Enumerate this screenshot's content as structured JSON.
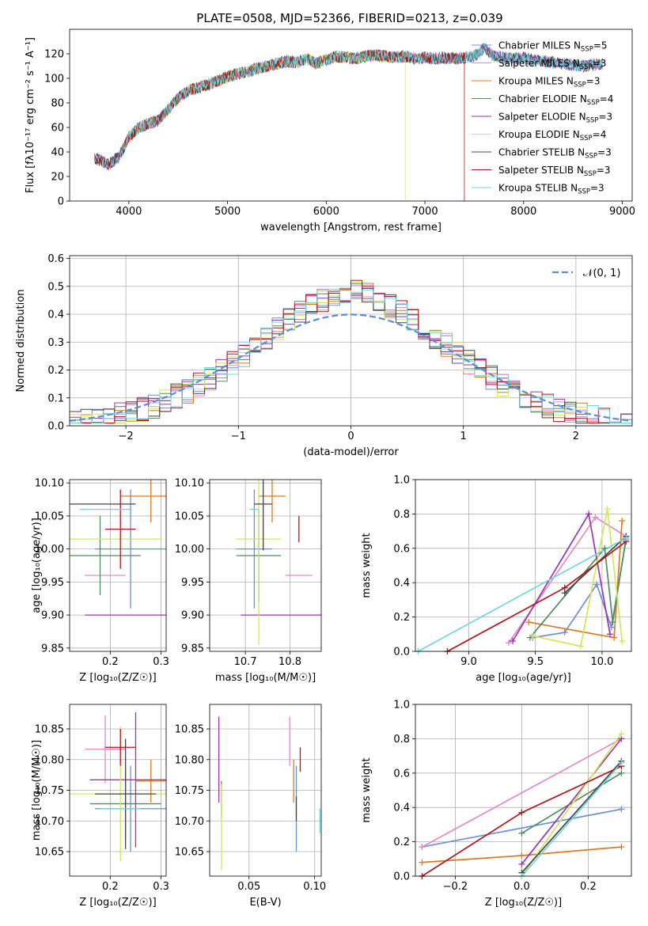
{
  "figure_title": "PLATE=0508, MJD=52366, FIBERID=0213, z=0.039",
  "models": [
    {
      "name": "Chabrier MILES",
      "nssp": "5",
      "color": "#6a8fdc"
    },
    {
      "name": "Salpeter MILES",
      "nssp": "3",
      "color": "#e68ac3"
    },
    {
      "name": "Kroupa MILES",
      "nssp": "3",
      "color": "#dd7a23"
    },
    {
      "name": "Chabrier ELODIE",
      "nssp": "4",
      "color": "#4f8e5f"
    },
    {
      "name": "Salpeter ELODIE",
      "nssp": "3",
      "color": "#9b35b0"
    },
    {
      "name": "Kroupa ELODIE",
      "nssp": "4",
      "color": "#cfe85a"
    },
    {
      "name": "Chabrier STELIB",
      "nssp": "3",
      "color": "#444444"
    },
    {
      "name": "Salpeter STELIB",
      "nssp": "3",
      "color": "#b1151c"
    },
    {
      "name": "Kroupa STELIB",
      "nssp": "3",
      "color": "#72d6e0"
    }
  ],
  "chart_data": [
    {
      "id": "spectrum",
      "type": "line",
      "xlabel": "wavelength [Angstrom, rest frame]",
      "ylabel": "Flux [fλ10⁻¹⁷ erg cm⁻² s⁻¹ A⁻¹]",
      "xlim": [
        3400,
        9100
      ],
      "ylim": [
        0,
        140
      ],
      "xticks": [
        4000,
        5000,
        6000,
        7000,
        8000,
        9000
      ],
      "yticks": [
        0,
        20,
        40,
        60,
        80,
        100,
        120
      ],
      "grid": false,
      "legend": "top-right",
      "x": [
        3650,
        3800,
        3900,
        4000,
        4100,
        4200,
        4300,
        4400,
        4500,
        4600,
        4700,
        4800,
        4900,
        5000,
        5100,
        5200,
        5300,
        5400,
        5500,
        5600,
        5700,
        5800,
        5900,
        6000,
        6100,
        6200,
        6300,
        6400,
        6500,
        6600,
        6700,
        6800,
        6900,
        7000,
        7100,
        7200,
        7300,
        7400,
        7500,
        7600,
        7700,
        7800,
        7900,
        8000,
        8100,
        8200,
        8300,
        8400,
        8500,
        8600,
        8700,
        8800
      ],
      "y": [
        35,
        30,
        36,
        52,
        60,
        63,
        66,
        75,
        84,
        90,
        92,
        95,
        98,
        101,
        104,
        105,
        108,
        110,
        112,
        114,
        113,
        116,
        112,
        115,
        118,
        117,
        116,
        118,
        119,
        118,
        117,
        118,
        116,
        117,
        116,
        117,
        116,
        117,
        118,
        125,
        118,
        117,
        116,
        117,
        115,
        114,
        113,
        112,
        111,
        110,
        111,
        112
      ],
      "cutoffs": [
        {
          "model": "Kroupa ELODIE",
          "x_start": 3920,
          "x_end": 6800
        },
        {
          "model": "Salpeter STELIB",
          "x_start": 3650,
          "x_end": 7400
        },
        {
          "model": "Kroupa MILES",
          "x_start": 3650,
          "x_end": 7400
        }
      ]
    },
    {
      "id": "residual-histogram",
      "type": "line",
      "xlabel": "(data-model)/error",
      "ylabel": "Normed distribution",
      "xlim": [
        -2.5,
        2.5
      ],
      "ylim": [
        0,
        0.61
      ],
      "xticks": [
        -2,
        -1,
        0,
        1,
        2
      ],
      "yticks": [
        0.0,
        0.1,
        0.2,
        0.3,
        0.4,
        0.5,
        0.6
      ],
      "grid": true,
      "legend": "top-right",
      "reference_label": "𝒩(0, 1)",
      "reference_color": "#5a8fd6",
      "bin_edges_range": [
        -2.5,
        2.5
      ],
      "bin_width": 0.1
    },
    {
      "id": "age-vs-Z",
      "type": "scatter",
      "xlabel": "Z [log₁₀(Z/Z☉)]",
      "ylabel": "age  [log₁₀(age/yr)]",
      "xlim": [
        0.12,
        0.31
      ],
      "ylim": [
        9.845,
        10.105
      ],
      "xticks": [
        0.2,
        0.3
      ],
      "yticks": [
        9.85,
        9.9,
        9.95,
        10.0,
        10.05,
        10.1
      ],
      "grid": true,
      "points": [
        {
          "model": "Chabrier MILES",
          "x": 0.24,
          "xerr": 0.07,
          "y": 10.0,
          "yerr": 0.09
        },
        {
          "model": "Salpeter MILES",
          "x": 0.19,
          "xerr": 0.04,
          "y": 9.96,
          "yerr": 0.0
        },
        {
          "model": "Kroupa MILES",
          "x": 0.28,
          "xerr": 0.06,
          "y": 10.08,
          "yerr": 0.04
        },
        {
          "model": "Chabrier ELODIE",
          "x": 0.18,
          "xerr": 0.08,
          "y": 9.99,
          "yerr": 0.06
        },
        {
          "model": "Salpeter ELODIE",
          "x": 0.24,
          "xerr": 0.09,
          "y": 9.9,
          "yerr": 0.0
        },
        {
          "model": "Kroupa ELODIE",
          "x": 0.18,
          "xerr": 0.12,
          "y": 10.015,
          "yerr": 0.0
        },
        {
          "model": "Chabrier STELIB",
          "x": 0.18,
          "xerr": 0.07,
          "y": 10.068,
          "yerr": 0.0
        },
        {
          "model": "Salpeter STELIB",
          "x": 0.22,
          "xerr": 0.03,
          "y": 10.03,
          "yerr": 0.06
        },
        {
          "model": "Kroupa STELIB",
          "x": 0.19,
          "xerr": 0.05,
          "y": 10.06,
          "yerr": 0.0
        }
      ]
    },
    {
      "id": "age-vs-mass",
      "type": "scatter",
      "xlabel": "mass [log₁₀(M/M☉)]",
      "ylabel": "",
      "xlim": [
        10.62,
        10.87
      ],
      "ylim": [
        9.845,
        10.105
      ],
      "xticks": [
        10.7,
        10.8
      ],
      "yticks": [
        9.85,
        9.9,
        9.95,
        10.0,
        10.05,
        10.1
      ],
      "grid": true,
      "points": [
        {
          "model": "Chabrier MILES",
          "x": 10.72,
          "xerr": 0.04,
          "y": 10.0,
          "yerr": 0.09
        },
        {
          "model": "Salpeter MILES",
          "x": 10.82,
          "xerr": 0.03,
          "y": 9.96,
          "yerr": 0.0
        },
        {
          "model": "Kroupa MILES",
          "x": 10.76,
          "xerr": 0.03,
          "y": 10.08,
          "yerr": 0.04
        },
        {
          "model": "Chabrier ELODIE",
          "x": 10.73,
          "xerr": 0.05,
          "y": 9.99,
          "yerr": 0.07
        },
        {
          "model": "Salpeter ELODIE",
          "x": 10.78,
          "xerr": 0.09,
          "y": 9.9,
          "yerr": 0.0
        },
        {
          "model": "Kroupa ELODIE",
          "x": 10.73,
          "xerr": 0.05,
          "y": 10.015,
          "yerr": 0.16
        },
        {
          "model": "Chabrier STELIB",
          "x": 10.74,
          "xerr": 0.02,
          "y": 10.068,
          "yerr": 0.07
        },
        {
          "model": "Salpeter STELIB",
          "x": 10.82,
          "xerr": 0.0,
          "y": 10.03,
          "yerr": 0.02
        },
        {
          "model": "Kroupa STELIB",
          "x": 10.72,
          "xerr": 0.01,
          "y": 10.06,
          "yerr": 0.0
        }
      ]
    },
    {
      "id": "weight-vs-age",
      "type": "line",
      "xlabel": "age  [log₁₀(age/yr)]",
      "ylabel": "mass weight",
      "xlim": [
        8.6,
        10.22
      ],
      "ylim": [
        0,
        1
      ],
      "xticks": [
        9.0,
        9.5,
        10.0
      ],
      "yticks": [
        0.0,
        0.2,
        0.4,
        0.6,
        0.8,
        1.0
      ],
      "grid": true,
      "series": [
        {
          "model": "Chabrier MILES",
          "x": [
            9.48,
            9.72,
            9.96,
            10.07,
            10.18
          ],
          "y": [
            0.08,
            0.11,
            0.39,
            0.14,
            0.65
          ]
        },
        {
          "model": "Salpeter MILES",
          "x": [
            9.3,
            9.95,
            10.18
          ],
          "y": [
            0.05,
            0.78,
            0.67
          ]
        },
        {
          "model": "Kroupa MILES",
          "x": [
            9.45,
            10.09,
            10.15
          ],
          "y": [
            0.17,
            0.08,
            0.76
          ]
        },
        {
          "model": "Chabrier ELODIE",
          "x": [
            9.46,
            10.02,
            10.08,
            10.18
          ],
          "y": [
            0.08,
            0.6,
            0.17,
            0.66
          ]
        },
        {
          "model": "Salpeter ELODIE",
          "x": [
            9.33,
            9.9,
            10.06
          ],
          "y": [
            0.06,
            0.8,
            0.1
          ]
        },
        {
          "model": "Kroupa ELODIE",
          "x": [
            9.48,
            9.84,
            10.04,
            10.15
          ],
          "y": [
            0.09,
            0.03,
            0.83,
            0.06
          ]
        },
        {
          "model": "Chabrier STELIB",
          "x": [
            9.72,
            10.18
          ],
          "y": [
            0.34,
            0.67
          ]
        },
        {
          "model": "Salpeter STELIB",
          "x": [
            8.84,
            9.72,
            10.18
          ],
          "y": [
            0.0,
            0.37,
            0.64
          ]
        },
        {
          "model": "Kroupa STELIB",
          "x": [
            8.62,
            10.18
          ],
          "y": [
            0.0,
            0.66
          ]
        }
      ]
    },
    {
      "id": "mass-vs-Z",
      "type": "scatter",
      "xlabel": "Z [log₁₀(Z/Z☉)]",
      "ylabel": "mass [log₁₀(M/M☉)]",
      "xlim": [
        0.12,
        0.31
      ],
      "ylim": [
        10.61,
        10.89
      ],
      "xticks": [
        0.2,
        0.3
      ],
      "yticks": [
        10.65,
        10.7,
        10.75,
        10.8,
        10.85
      ],
      "grid": true,
      "points": [
        {
          "model": "Chabrier MILES",
          "x": 0.24,
          "xerr": 0.07,
          "y": 10.72,
          "yerr": 0.07
        },
        {
          "model": "Salpeter MILES",
          "x": 0.19,
          "xerr": 0.04,
          "y": 10.817,
          "yerr": 0.055
        },
        {
          "model": "Kroupa MILES",
          "x": 0.28,
          "xerr": 0.03,
          "y": 10.765,
          "yerr": 0.035
        },
        {
          "model": "Chabrier ELODIE",
          "x": 0.23,
          "xerr": 0.07,
          "y": 10.728,
          "yerr": 0.06
        },
        {
          "model": "Salpeter ELODIE",
          "x": 0.25,
          "xerr": 0.09,
          "y": 10.767,
          "yerr": 0.11
        },
        {
          "model": "Kroupa ELODIE",
          "x": 0.22,
          "xerr": 0.1,
          "y": 10.744,
          "yerr": 0.11
        },
        {
          "model": "Chabrier STELIB",
          "x": 0.23,
          "xerr": 0.06,
          "y": 10.744,
          "yerr": 0.09
        },
        {
          "model": "Salpeter STELIB",
          "x": 0.22,
          "xerr": 0.03,
          "y": 10.82,
          "yerr": 0.03
        },
        {
          "model": "Kroupa STELIB",
          "x": 0.22,
          "xerr": 0.04,
          "y": 10.72,
          "yerr": 0.0
        }
      ]
    },
    {
      "id": "mass-vs-ebv",
      "type": "scatter",
      "xlabel": "E(B-V)",
      "ylabel": "",
      "xlim": [
        0.02,
        0.105
      ],
      "ylim": [
        10.61,
        10.89
      ],
      "xticks": [
        0.05,
        0.1
      ],
      "yticks": [
        10.65,
        10.7,
        10.75,
        10.8,
        10.85
      ],
      "grid": true,
      "points": [
        {
          "model": "Chabrier MILES",
          "x": 0.086,
          "xerr": 0.0,
          "y": 10.72,
          "yerr": 0.07
        },
        {
          "model": "Salpeter MILES",
          "x": 0.081,
          "xerr": 0.0,
          "y": 10.83,
          "yerr": 0.04
        },
        {
          "model": "Kroupa MILES",
          "x": 0.084,
          "xerr": 0.0,
          "y": 10.765,
          "yerr": 0.035
        },
        {
          "model": "Chabrier ELODIE",
          "x": 0.029,
          "xerr": 0.0,
          "y": 10.735,
          "yerr": 0.03
        },
        {
          "model": "Salpeter ELODIE",
          "x": 0.027,
          "xerr": 0.0,
          "y": 10.8,
          "yerr": 0.07
        },
        {
          "model": "Kroupa ELODIE",
          "x": 0.029,
          "xerr": 0.0,
          "y": 10.69,
          "yerr": 0.07
        },
        {
          "model": "Chabrier STELIB",
          "x": 0.086,
          "xerr": 0.0,
          "y": 10.72,
          "yerr": 0.02
        },
        {
          "model": "Salpeter STELIB",
          "x": 0.089,
          "xerr": 0.0,
          "y": 10.8,
          "yerr": 0.02
        },
        {
          "model": "Kroupa STELIB",
          "x": 0.104,
          "xerr": 0.0,
          "y": 10.7,
          "yerr": 0.02
        }
      ]
    },
    {
      "id": "weight-vs-Z",
      "type": "line",
      "xlabel": "Z [log₁₀(Z/Z☉)]",
      "ylabel": "mass weight",
      "xlim": [
        -0.32,
        0.33
      ],
      "ylim": [
        0,
        1
      ],
      "xticks": [
        -0.2,
        0.0,
        0.2
      ],
      "yticks": [
        0.0,
        0.2,
        0.4,
        0.6,
        0.8,
        1.0
      ],
      "grid": true,
      "series": [
        {
          "model": "Chabrier MILES",
          "x": [
            -0.3,
            0.3
          ],
          "y": [
            0.17,
            0.39
          ]
        },
        {
          "model": "Salpeter MILES",
          "x": [
            -0.3,
            0.3
          ],
          "y": [
            0.17,
            0.8
          ]
        },
        {
          "model": "Kroupa MILES",
          "x": [
            -0.3,
            0.0,
            0.3
          ],
          "y": [
            0.08,
            0.12,
            0.17
          ]
        },
        {
          "model": "Chabrier ELODIE",
          "x": [
            0.0,
            0.3
          ],
          "y": [
            0.25,
            0.6
          ]
        },
        {
          "model": "Salpeter ELODIE",
          "x": [
            0.0,
            0.3
          ],
          "y": [
            0.07,
            0.8
          ]
        },
        {
          "model": "Kroupa ELODIE",
          "x": [
            0.0,
            0.3
          ],
          "y": [
            0.0,
            0.83
          ]
        },
        {
          "model": "Chabrier STELIB",
          "x": [
            0.0,
            0.3
          ],
          "y": [
            0.02,
            0.67
          ]
        },
        {
          "model": "Salpeter STELIB",
          "x": [
            -0.3,
            0.0,
            0.3
          ],
          "y": [
            0.0,
            0.37,
            0.64
          ]
        },
        {
          "model": "Kroupa STELIB",
          "x": [
            0.0,
            0.3
          ],
          "y": [
            0.0,
            0.66
          ]
        }
      ]
    }
  ]
}
